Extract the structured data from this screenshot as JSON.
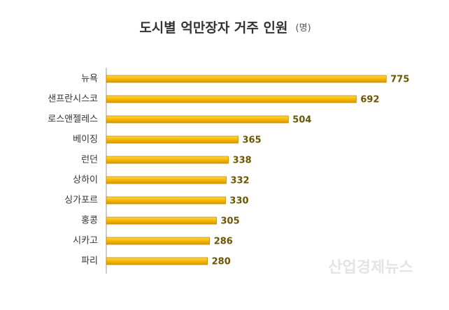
{
  "chart_data": {
    "type": "bar",
    "orientation": "horizontal",
    "title": "도시별 억만장자 거주 인원",
    "unit_label": "(명)",
    "categories": [
      "뉴욕",
      "샌프란시스코",
      "로스앤젤레스",
      "베이징",
      "런던",
      "상하이",
      "싱가포르",
      "홍콩",
      "시카고",
      "파리"
    ],
    "values": [
      775,
      692,
      504,
      365,
      338,
      332,
      330,
      305,
      286,
      280
    ],
    "color": "#f6b700",
    "xlim": [
      0,
      850
    ],
    "watermark": "산업경제뉴스"
  }
}
